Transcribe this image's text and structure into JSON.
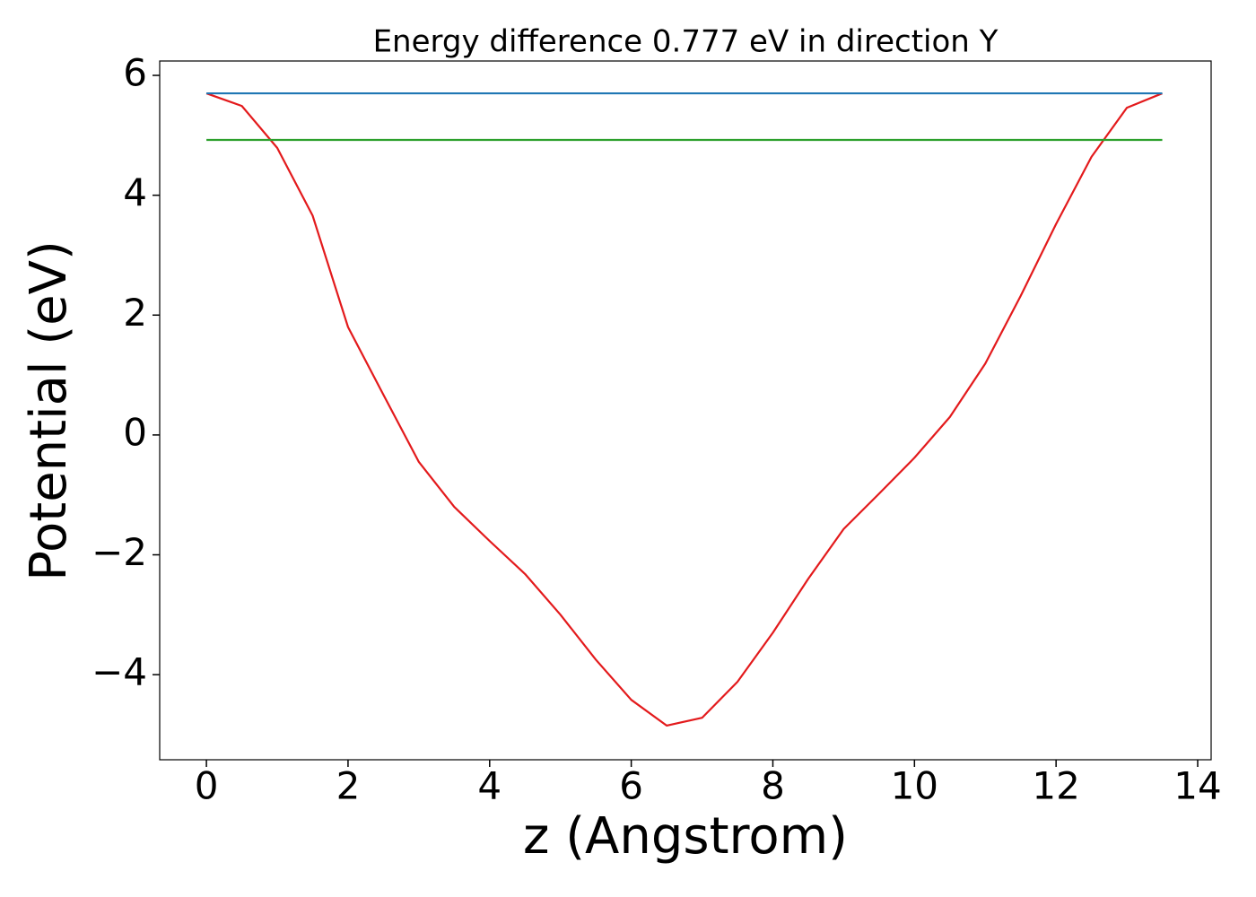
{
  "chart_data": {
    "type": "line",
    "title": "Energy difference 0.777 eV in direction Y",
    "xlabel": "z (Angstrom)",
    "ylabel": "Potential (eV)",
    "x": [
      0,
      0.5,
      1,
      1.5,
      2,
      2.5,
      3,
      3.5,
      4,
      4.5,
      5,
      5.5,
      6,
      6.5,
      7,
      7.5,
      8,
      8.5,
      9,
      9.5,
      10,
      10.5,
      11,
      11.5,
      12,
      12.5,
      13,
      13.5
    ],
    "series": [
      {
        "color": "#e31a1c",
        "values": [
          5.7,
          5.49,
          4.79,
          3.66,
          1.8,
          0.67,
          -0.45,
          -1.2,
          -1.77,
          -2.32,
          -3.0,
          -3.75,
          -4.42,
          -4.85,
          -4.72,
          -4.12,
          -3.3,
          -2.4,
          -1.57,
          -0.98,
          -0.38,
          0.3,
          1.19,
          2.32,
          3.52,
          4.64,
          5.46,
          5.7
        ]
      },
      {
        "color": "#1f77b4",
        "values": [
          5.7,
          5.7,
          5.7,
          5.7,
          5.7,
          5.7,
          5.7,
          5.7,
          5.7,
          5.7,
          5.7,
          5.7,
          5.7,
          5.7,
          5.7,
          5.7,
          5.7,
          5.7,
          5.7,
          5.7,
          5.7,
          5.7,
          5.7,
          5.7,
          5.7,
          5.7,
          5.7,
          5.7
        ]
      },
      {
        "color": "#2ca02c",
        "values": [
          4.923,
          4.923,
          4.923,
          4.923,
          4.923,
          4.923,
          4.923,
          4.923,
          4.923,
          4.923,
          4.923,
          4.923,
          4.923,
          4.923,
          4.923,
          4.923,
          4.923,
          4.923,
          4.923,
          4.923,
          4.923,
          4.923,
          4.923,
          4.923,
          4.923,
          4.923,
          4.923,
          4.923
        ]
      }
    ],
    "xlim": [
      -0.66,
      14.19
    ],
    "ylim": [
      -5.42,
      6.24
    ],
    "xticks": [
      0,
      2,
      4,
      6,
      8,
      10,
      12,
      14
    ],
    "yticks": [
      {
        "value": -4,
        "label": "−4"
      },
      {
        "value": -2,
        "label": "−2"
      },
      0,
      2,
      4,
      6
    ],
    "grid": false
  }
}
